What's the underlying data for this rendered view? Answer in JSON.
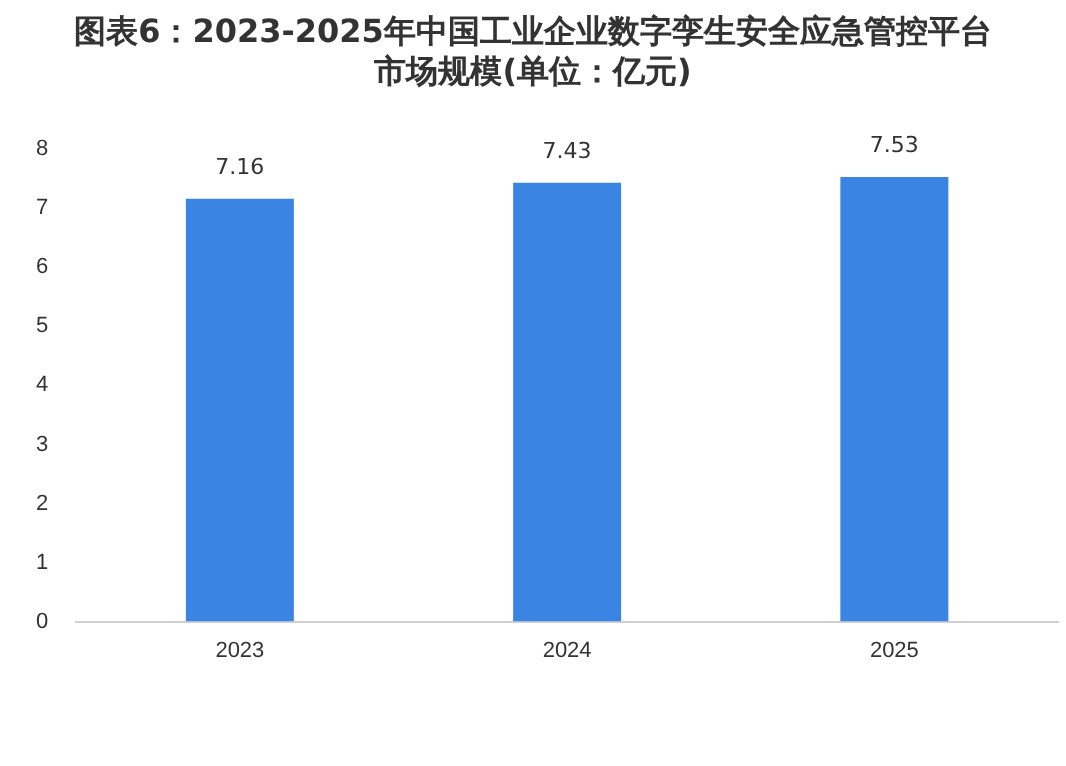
{
  "chart_data": {
    "type": "bar",
    "title": "图表6：2023-2025年中国工业企业数字孪生安全应急管控平台市场规模(单位：亿元)",
    "categories": [
      "2023",
      "2024",
      "2025"
    ],
    "values": [
      7.16,
      7.43,
      7.53
    ],
    "color": "#3a84e4",
    "ylim": [
      0,
      8
    ],
    "yticks": [
      0,
      1,
      2,
      3,
      4,
      5,
      6,
      7,
      8
    ],
    "grid": false,
    "data_labels": true
  }
}
